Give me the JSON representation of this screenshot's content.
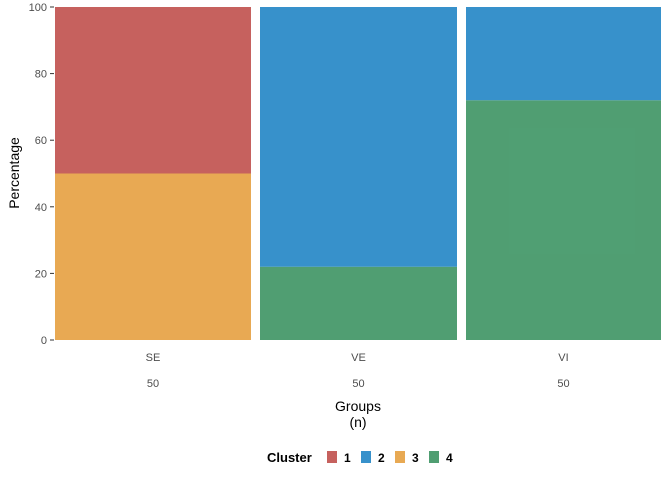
{
  "chart_data": {
    "type": "bar",
    "stacked": true,
    "normalized": true,
    "ylabel": "Percentage",
    "xlabel_lines": [
      "Groups",
      "(n)"
    ],
    "ylim": [
      0,
      100
    ],
    "yticks": [
      0,
      20,
      40,
      60,
      80,
      100
    ],
    "grid": false,
    "legend_position": "bottom",
    "categories": [
      "SE",
      "VE",
      "VI"
    ],
    "counts": [
      "50",
      "50",
      "50"
    ],
    "legend": {
      "title": "Cluster",
      "entries": [
        {
          "label": "1",
          "color": "#c0504d"
        },
        {
          "label": "2",
          "color": "#2185c5"
        },
        {
          "label": "3",
          "color": "#e6a040"
        },
        {
          "label": "4",
          "color": "#3d9463"
        }
      ]
    },
    "series": [
      {
        "name": "1",
        "color": "#c0504d",
        "values": [
          50,
          0,
          0
        ]
      },
      {
        "name": "2",
        "color": "#2185c5",
        "values": [
          0,
          78,
          28
        ]
      },
      {
        "name": "3",
        "color": "#e6a040",
        "values": [
          50,
          0,
          0
        ]
      },
      {
        "name": "4",
        "color": "#3d9463",
        "values": [
          0,
          22,
          72
        ]
      }
    ]
  }
}
